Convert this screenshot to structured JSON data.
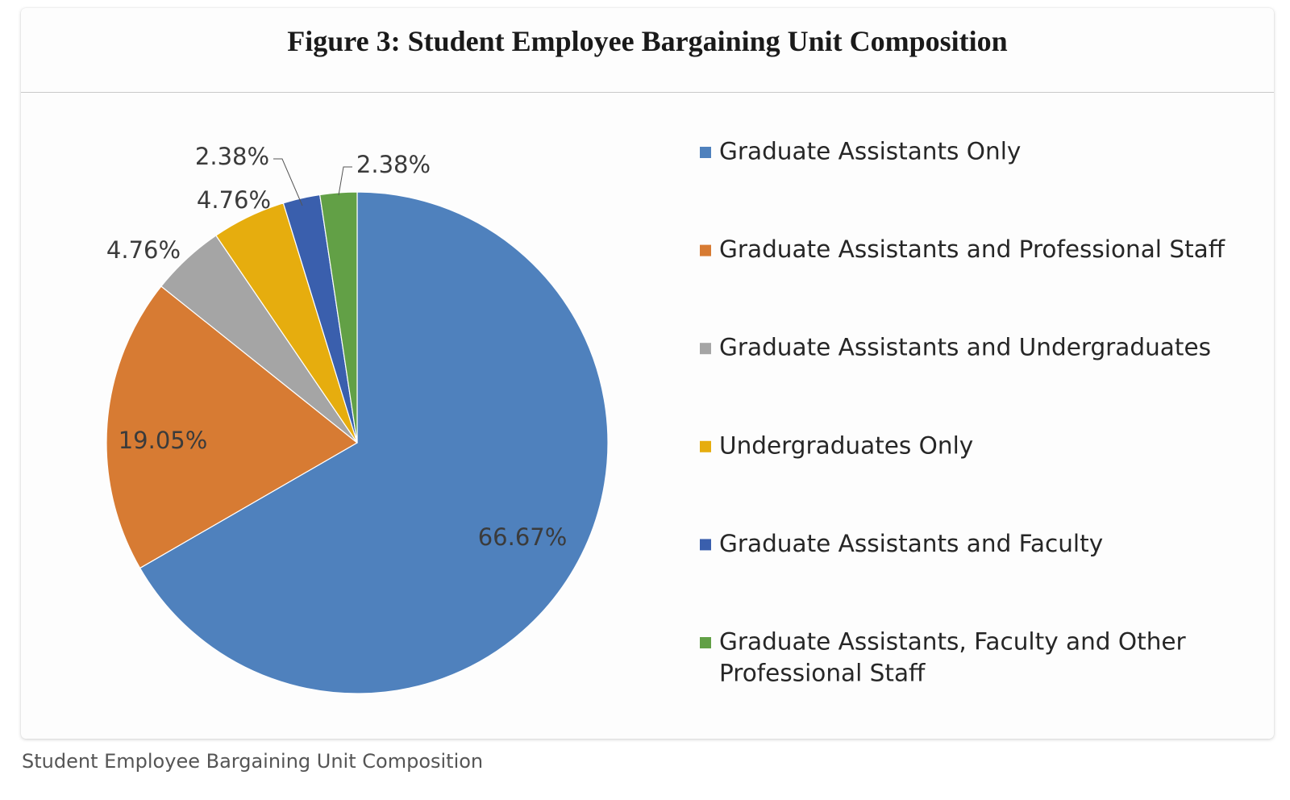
{
  "caption": "Student Employee Bargaining Unit Composition",
  "chart_data": {
    "type": "pie",
    "title": "Figure 3: Student Employee Bargaining Unit Composition",
    "start_angle_deg": 0,
    "direction": "clockwise",
    "legend_position": "right",
    "slices": [
      {
        "name": "Graduate Assistants Only",
        "value": 66.67,
        "label": "66.67%",
        "color": "#4f81bd"
      },
      {
        "name": "Graduate Assistants and Professional Staff",
        "value": 19.05,
        "label": "19.05%",
        "color": "#d77b33"
      },
      {
        "name": "Graduate Assistants and Undergraduates",
        "value": 4.76,
        "label": "4.76%",
        "color": "#a5a5a5"
      },
      {
        "name": "Undergraduates Only",
        "value": 4.76,
        "label": "4.76%",
        "color": "#e6ad0e"
      },
      {
        "name": "Graduate Assistants and Faculty",
        "value": 2.38,
        "label": "2.38%",
        "color": "#3a5fad"
      },
      {
        "name": "Graduate Assistants, Faculty and Other Professional Staff",
        "value": 2.38,
        "label": "2.38%",
        "color": "#62a046"
      }
    ],
    "legend": [
      {
        "lines": [
          "Graduate Assistants Only"
        ]
      },
      {
        "lines": [
          "Graduate Assistants and Professional Staff"
        ]
      },
      {
        "lines": [
          "Graduate Assistants and Undergraduates"
        ]
      },
      {
        "lines": [
          "Undergraduates Only"
        ]
      },
      {
        "lines": [
          "Graduate Assistants and Faculty"
        ]
      },
      {
        "lines": [
          "Graduate Assistants, Faculty and Other",
          "Professional Staff"
        ]
      }
    ]
  }
}
